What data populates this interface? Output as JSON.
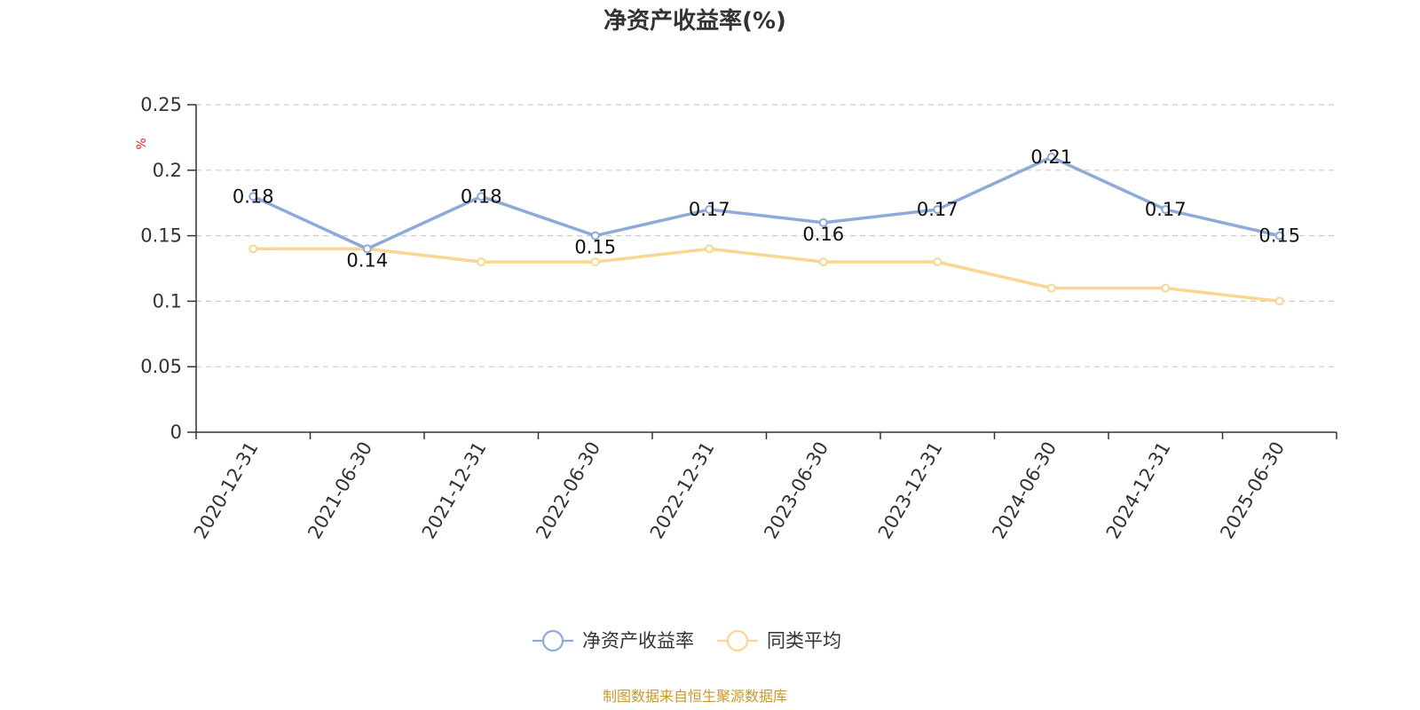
{
  "chart_data": {
    "type": "line",
    "title": "净资产收益率(%)",
    "ylabel": "%",
    "xlabel": "",
    "categories": [
      "2020-12-31",
      "2021-06-30",
      "2021-12-31",
      "2022-06-30",
      "2022-12-31",
      "2023-06-30",
      "2023-12-31",
      "2024-06-30",
      "2024-12-31",
      "2025-06-30"
    ],
    "ylim": [
      0,
      0.25
    ],
    "yticks": [
      0,
      0.05,
      0.1,
      0.15,
      0.2,
      0.25
    ],
    "ytick_labels": [
      "0",
      "0.05",
      "0.1",
      "0.15",
      "0.2",
      "0.25"
    ],
    "grid": true,
    "legend_position": "bottom-center",
    "series": [
      {
        "name": "净资产收益率",
        "values": [
          0.18,
          0.14,
          0.18,
          0.15,
          0.17,
          0.16,
          0.17,
          0.21,
          0.17,
          0.15
        ],
        "color": "#8eaad9",
        "show_labels": true
      },
      {
        "name": "同类平均",
        "values": [
          0.14,
          0.14,
          0.13,
          0.13,
          0.14,
          0.13,
          0.13,
          0.11,
          0.11,
          0.1
        ],
        "color": "#fad692",
        "show_labels": false
      }
    ]
  },
  "source_note": "制图数据来自恒生聚源数据库"
}
